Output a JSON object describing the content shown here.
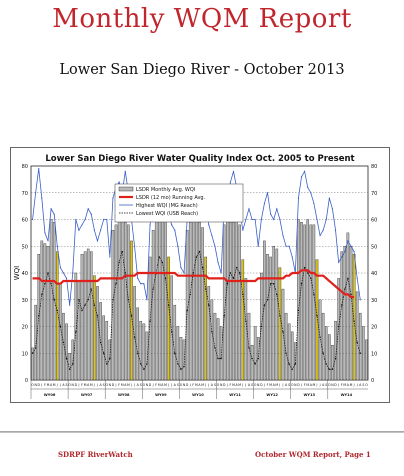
{
  "report": {
    "title": "Monthly WQM Report",
    "subtitle": "Lower San Diego River - October 2013"
  },
  "footer": {
    "left": "SDRPF RiverWatch",
    "right": "October WQM Report, Page 1"
  },
  "colors": {
    "title": "#c0262c",
    "running_avg": "#e0201a",
    "highest": "#3a5fc8",
    "lowest": "#111111",
    "bar_fill": "#b9b9b9",
    "bar_highlight": "#d9c21a"
  },
  "chart_data": {
    "type": "bar",
    "title": "Lower San Diego River Water Quality Index Oct. 2005 to Present",
    "ylabel": "WQI",
    "ylim": [
      0,
      80
    ],
    "yticks": [
      0,
      10,
      20,
      30,
      40,
      50,
      60,
      70,
      80
    ],
    "grid": true,
    "legend_position": "top-left",
    "month_labels": [
      "O",
      "N",
      "D",
      "J",
      "F",
      "M",
      "A",
      "M",
      "J",
      "J",
      "A",
      "S"
    ],
    "water_years": [
      "WY06",
      "WY07",
      "WY08",
      "WY09",
      "WY10",
      "WY11",
      "WY12",
      "WY13",
      "WY14"
    ],
    "series": [
      {
        "name": "LSDR Monthly Avg. WQI",
        "kind": "bar",
        "values": [
          12,
          28,
          47,
          52,
          51,
          50,
          60,
          59,
          48,
          36,
          25,
          21,
          10,
          15,
          40,
          37,
          47,
          48,
          49,
          48,
          39,
          35,
          29,
          24,
          22,
          15,
          56,
          58,
          61,
          60,
          59,
          58,
          52,
          35,
          27,
          22,
          21,
          18,
          46,
          56,
          61,
          60,
          62,
          64,
          46,
          39,
          28,
          20,
          16,
          15,
          56,
          59,
          60,
          60,
          59,
          57,
          46,
          35,
          30,
          25,
          23,
          20,
          58,
          61,
          59,
          59,
          60,
          58,
          45,
          38,
          25,
          13,
          20,
          16,
          40,
          52,
          47,
          46,
          50,
          49,
          42,
          34,
          25,
          21,
          18,
          14,
          60,
          59,
          58,
          60,
          58,
          58,
          45,
          30,
          25,
          20,
          17,
          13,
          22,
          38,
          48,
          50,
          55,
          50,
          47,
          33,
          25,
          20,
          15
        ]
      },
      {
        "name": "LSDR (12 mo) Running Avg.",
        "kind": "line",
        "values": [
          38,
          38,
          38,
          37,
          37,
          37,
          37,
          37,
          36,
          36,
          37,
          37,
          37,
          37,
          37,
          37,
          37,
          37,
          37,
          37,
          37,
          37,
          38,
          38,
          38,
          38,
          38,
          38,
          38,
          38,
          39,
          39,
          39,
          39,
          40,
          40,
          40,
          40,
          40,
          40,
          40,
          40,
          40,
          40,
          40,
          40,
          40,
          39,
          39,
          39,
          39,
          39,
          39,
          39,
          39,
          39,
          39,
          38,
          38,
          38,
          38,
          38,
          38,
          37,
          37,
          37,
          37,
          37,
          37,
          37,
          37,
          37,
          37,
          38,
          38,
          38,
          38,
          38,
          38,
          38,
          38,
          38,
          39,
          39,
          40,
          40,
          40,
          41,
          41,
          41,
          40,
          40,
          39,
          39,
          39,
          38,
          37,
          36,
          35,
          34,
          33,
          32,
          32,
          31,
          31
        ]
      },
      {
        "name": "Highest WQI (MG Reach)",
        "kind": "line",
        "values": [
          60,
          70,
          79,
          68,
          55,
          52,
          64,
          62,
          50,
          42,
          40,
          38,
          28,
          40,
          60,
          56,
          58,
          60,
          64,
          62,
          56,
          52,
          56,
          60,
          60,
          46,
          68,
          72,
          74,
          70,
          78,
          70,
          60,
          50,
          38,
          36,
          36,
          30,
          58,
          66,
          60,
          70,
          72,
          66,
          62,
          58,
          56,
          50,
          42,
          40,
          60,
          68,
          70,
          66,
          62,
          70,
          66,
          58,
          54,
          50,
          44,
          40,
          66,
          68,
          74,
          78,
          72,
          64,
          56,
          60,
          64,
          60,
          60,
          50,
          60,
          66,
          70,
          62,
          60,
          64,
          60,
          54,
          50,
          50,
          46,
          40,
          68,
          76,
          78,
          72,
          70,
          66,
          60,
          54,
          56,
          60,
          68,
          64,
          56,
          44,
          46,
          48,
          52,
          50,
          48,
          38,
          30
        ]
      },
      {
        "name": "Lowest WQI (USB Reach)",
        "kind": "line",
        "values": [
          10,
          12,
          24,
          32,
          36,
          40,
          36,
          30,
          26,
          20,
          14,
          8,
          4,
          6,
          18,
          30,
          26,
          28,
          30,
          34,
          28,
          24,
          14,
          10,
          6,
          8,
          30,
          36,
          44,
          48,
          40,
          30,
          24,
          16,
          10,
          6,
          4,
          6,
          22,
          34,
          40,
          46,
          44,
          38,
          28,
          18,
          10,
          6,
          4,
          5,
          26,
          32,
          40,
          46,
          48,
          42,
          34,
          28,
          18,
          12,
          8,
          8,
          24,
          36,
          40,
          38,
          42,
          40,
          32,
          22,
          12,
          8,
          6,
          8,
          20,
          28,
          30,
          36,
          36,
          32,
          24,
          18,
          10,
          6,
          4,
          6,
          26,
          36,
          42,
          40,
          38,
          32,
          24,
          16,
          10,
          6,
          4,
          4,
          8,
          20,
          28,
          34,
          38,
          32,
          22,
          14,
          10
        ]
      }
    ]
  }
}
